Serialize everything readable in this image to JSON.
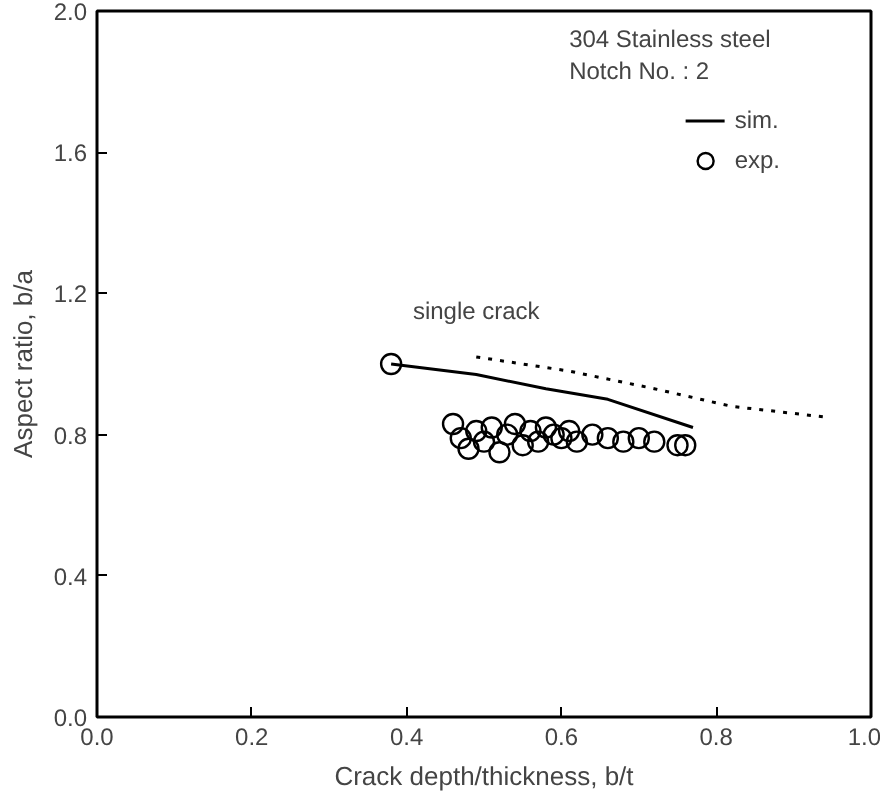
{
  "chart_data": {
    "type": "line",
    "xlabel": "Crack depth/thickness, b/t",
    "ylabel": "Aspect ratio, b/a",
    "xlim": [
      0,
      1
    ],
    "ylim": [
      0,
      2
    ],
    "xticks": [
      {
        "value": 0,
        "label": "0.0"
      },
      {
        "value": 0.2,
        "label": "0.2"
      },
      {
        "value": 0.4,
        "label": "0.4"
      },
      {
        "value": 0.6,
        "label": "0.6"
      },
      {
        "value": 0.8,
        "label": "0.8"
      },
      {
        "value": 1,
        "label": "1.0"
      }
    ],
    "yticks": [
      {
        "value": 0,
        "label": "0.0"
      },
      {
        "value": 0.4,
        "label": "0.4"
      },
      {
        "value": 0.8,
        "label": "0.8"
      },
      {
        "value": 1.2,
        "label": "1.2"
      },
      {
        "value": 1.6,
        "label": "1.6"
      },
      {
        "value": 2,
        "label": "2.0"
      }
    ],
    "grid": false,
    "legend": "top right",
    "annotations": [
      "304 Stainless steel",
      "Notch No. : 2",
      "single crack"
    ],
    "series": [
      {
        "name": "sim.",
        "color": "#000000",
        "line_style": "solid",
        "x": [
          0.38,
          0.49,
          0.58,
          0.66,
          0.77
        ],
        "values": [
          1.0,
          0.97,
          0.93,
          0.9,
          0.82
        ]
      },
      {
        "color": "#000000",
        "line_style": "dotted",
        "x": [
          0.49,
          0.61,
          0.72,
          0.82,
          0.94
        ],
        "values": [
          1.02,
          0.98,
          0.93,
          0.88,
          0.85
        ]
      },
      {
        "name": "exp.",
        "type": "scatter",
        "marker": "circle",
        "color": "#000000",
        "x": [
          0.38,
          0.46,
          0.47,
          0.48,
          0.49,
          0.5,
          0.51,
          0.52,
          0.53,
          0.54,
          0.55,
          0.56,
          0.57,
          0.58,
          0.59,
          0.6,
          0.61,
          0.62,
          0.64,
          0.66,
          0.68,
          0.7,
          0.72,
          0.75,
          0.76
        ],
        "values": [
          1.0,
          0.83,
          0.79,
          0.76,
          0.81,
          0.78,
          0.82,
          0.75,
          0.8,
          0.83,
          0.77,
          0.81,
          0.78,
          0.82,
          0.8,
          0.79,
          0.81,
          0.78,
          0.8,
          0.79,
          0.78,
          0.79,
          0.78,
          0.77,
          0.77
        ]
      }
    ]
  }
}
